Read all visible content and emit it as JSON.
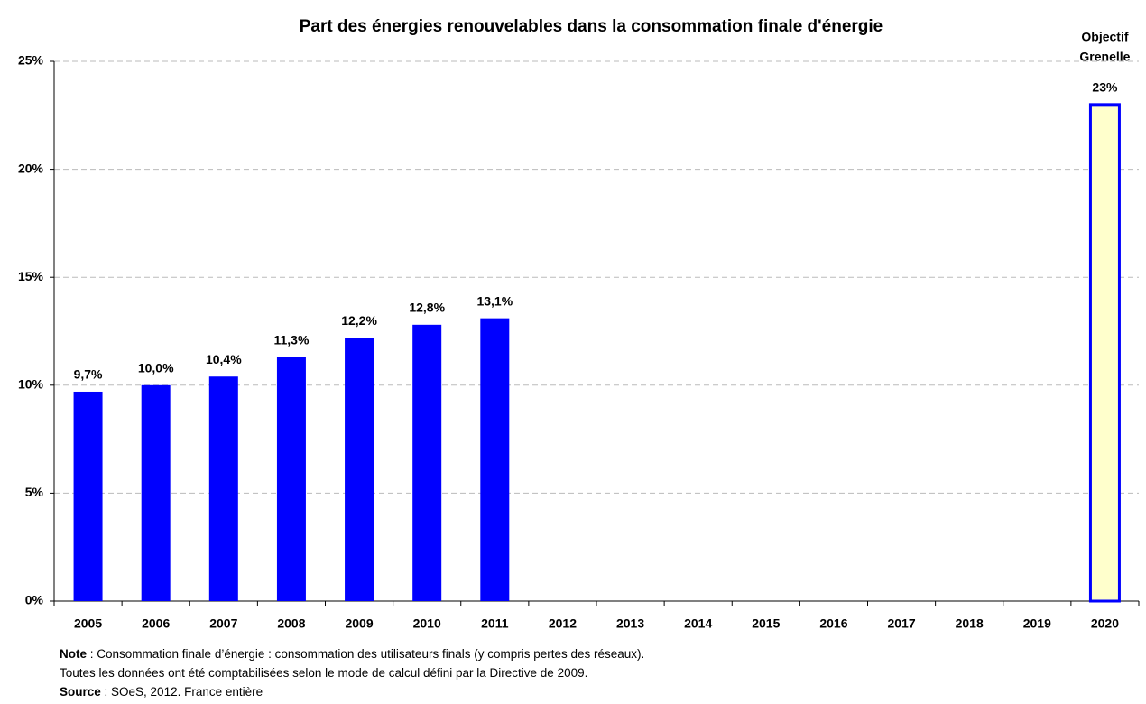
{
  "chart_data": {
    "type": "bar",
    "title": "Part des énergies renouvelables dans la consommation finale d'énergie",
    "categories": [
      "2005",
      "2006",
      "2007",
      "2008",
      "2009",
      "2010",
      "2011",
      "2012",
      "2013",
      "2014",
      "2015",
      "2016",
      "2017",
      "2018",
      "2019",
      "2020"
    ],
    "values": [
      9.7,
      10.0,
      10.4,
      11.3,
      12.2,
      12.8,
      13.1,
      null,
      null,
      null,
      null,
      null,
      null,
      null,
      null,
      23
    ],
    "value_labels": [
      "9,7%",
      "10,0%",
      "10,4%",
      "11,3%",
      "12,2%",
      "12,8%",
      "13,1%",
      null,
      null,
      null,
      null,
      null,
      null,
      null,
      null,
      "23%"
    ],
    "fill_colors": [
      "#0000ff",
      "#0000ff",
      "#0000ff",
      "#0000ff",
      "#0000ff",
      "#0000ff",
      "#0000ff",
      null,
      null,
      null,
      null,
      null,
      null,
      null,
      null,
      "#ffffcc"
    ],
    "edge_colors": [
      "#0000ff",
      "#0000ff",
      "#0000ff",
      "#0000ff",
      "#0000ff",
      "#0000ff",
      "#0000ff",
      null,
      null,
      null,
      null,
      null,
      null,
      null,
      null,
      "#0000ff"
    ],
    "annotation": [
      "Objectif",
      "Grenelle"
    ],
    "ylim": [
      0,
      25
    ],
    "yticks": [
      {
        "value": 0,
        "label": "0%"
      },
      {
        "value": 5,
        "label": "5%"
      },
      {
        "value": 10,
        "label": "10%"
      },
      {
        "value": 15,
        "label": "15%"
      },
      {
        "value": 20,
        "label": "20%"
      },
      {
        "value": 25,
        "label": "25%"
      }
    ],
    "grid": true,
    "notes": [
      {
        "label": "Note",
        "text": " : Consommation finale d’énergie : consommation des utilisateurs finals (y compris pertes des réseaux)."
      },
      {
        "label": null,
        "text": "Toutes les données ont été comptabilisées selon le mode de calcul défini par la Directive de 2009."
      },
      {
        "label": "Source",
        "text": " : SOeS, 2012. France entière"
      }
    ]
  }
}
